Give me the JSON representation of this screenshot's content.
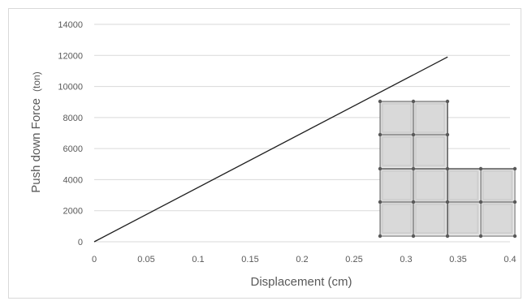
{
  "chart_data": {
    "type": "line",
    "xlabel": "Displacement (cm)",
    "ylabel": "Push down Force",
    "ylabel_unit": "(ton)",
    "xlim": [
      0,
      0.4
    ],
    "ylim": [
      0,
      14000
    ],
    "x_ticks": [
      "0",
      "0.05",
      "0.1",
      "0.15",
      "0.2",
      "0.25",
      "0.3",
      "0.35",
      "0.4"
    ],
    "y_ticks": [
      "0",
      "2000",
      "4000",
      "6000",
      "8000",
      "10000",
      "12000",
      "14000"
    ],
    "grid": true,
    "series": [
      {
        "x": [
          0,
          0.34
        ],
        "y": [
          0,
          11900
        ],
        "color": "#1f1f1f"
      }
    ],
    "inset": {
      "description_free": true,
      "grid_fill": "#d9d9d9",
      "node_color": "#595959"
    }
  }
}
